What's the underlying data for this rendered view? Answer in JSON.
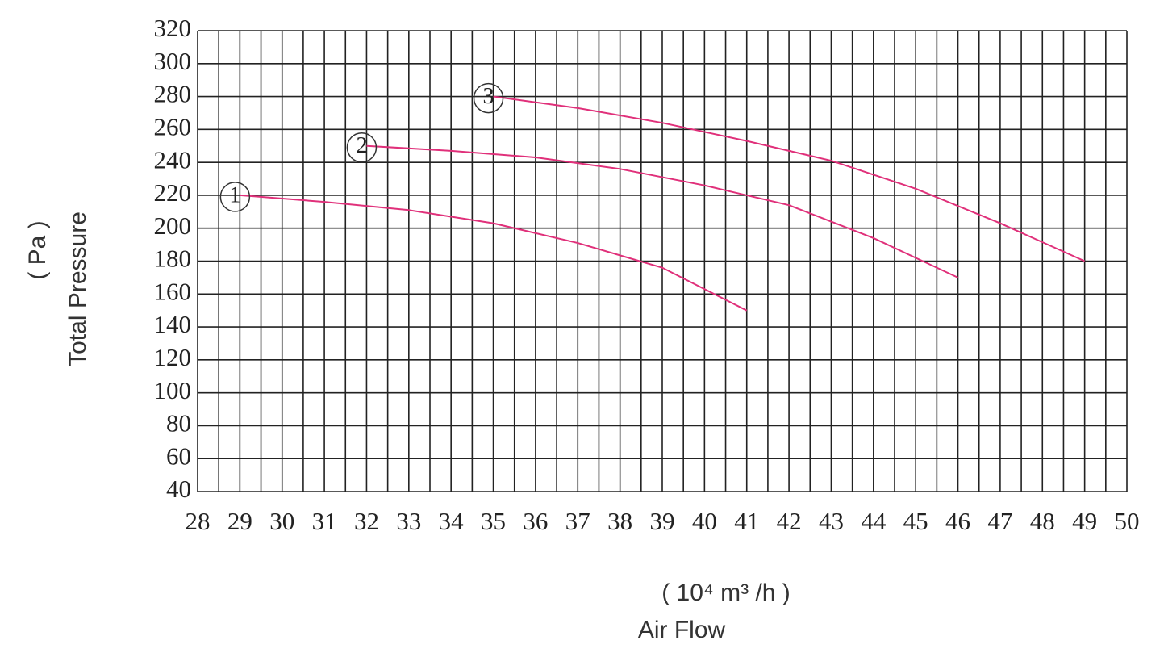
{
  "chart_data": {
    "type": "line",
    "xlabel": "Air Flow",
    "xunit": "( 10⁴ m³ /h )",
    "ylabel": "Total  Pressure",
    "yunit": "( Pa )",
    "xlim": [
      28,
      50
    ],
    "xticks": [
      28,
      29,
      30,
      31,
      32,
      33,
      34,
      35,
      36,
      37,
      38,
      39,
      40,
      41,
      42,
      43,
      44,
      45,
      46,
      47,
      48,
      49,
      50
    ],
    "ylim": [
      40,
      320
    ],
    "yticks": [
      40,
      60,
      80,
      100,
      120,
      140,
      160,
      180,
      200,
      220,
      240,
      260,
      280,
      300,
      320
    ],
    "grid": true,
    "series": [
      {
        "name": "1",
        "color": "#e0307a",
        "x": [
          29,
          31,
          33,
          35,
          37,
          39,
          41
        ],
        "values": [
          220,
          216,
          211,
          203,
          191,
          176,
          150
        ]
      },
      {
        "name": "2",
        "color": "#e0307a",
        "x": [
          32,
          34,
          36,
          38,
          40,
          42,
          44,
          46
        ],
        "values": [
          250,
          247,
          243,
          236,
          226,
          214,
          194,
          170
        ]
      },
      {
        "name": "3",
        "color": "#e0307a",
        "x": [
          35,
          37,
          39,
          41,
          43,
          45,
          47,
          49
        ],
        "values": [
          280,
          273,
          264,
          253,
          241,
          224,
          203,
          180
        ]
      }
    ]
  }
}
